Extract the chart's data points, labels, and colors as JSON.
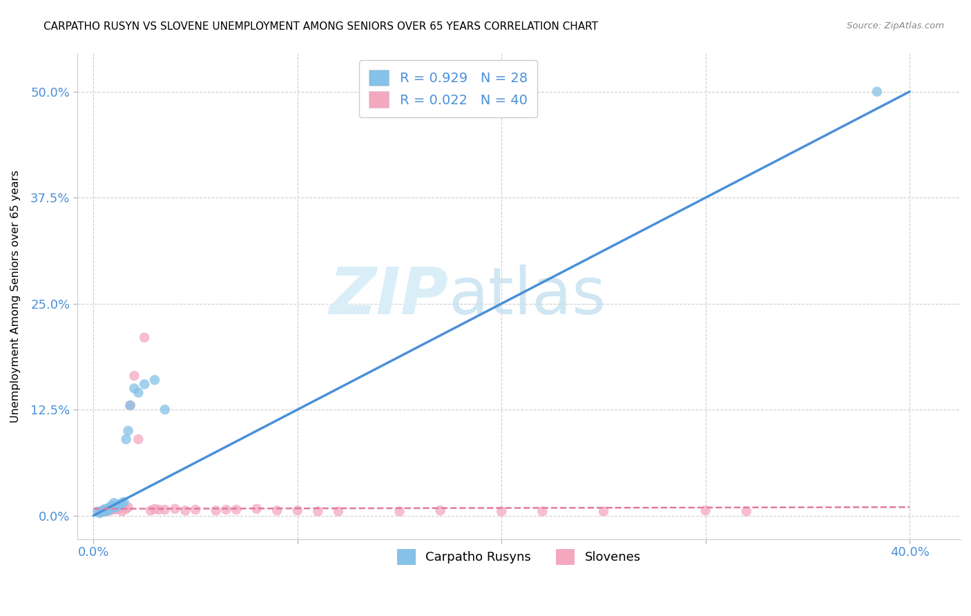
{
  "title": "CARPATHO RUSYN VS SLOVENE UNEMPLOYMENT AMONG SENIORS OVER 65 YEARS CORRELATION CHART",
  "source": "Source: ZipAtlas.com",
  "ylabel": "Unemployment Among Seniors over 65 years",
  "yticks": [
    "0.0%",
    "12.5%",
    "25.0%",
    "37.5%",
    "50.0%"
  ],
  "ytick_vals": [
    0.0,
    0.125,
    0.25,
    0.375,
    0.5
  ],
  "xtick_vals": [
    0.0,
    0.1,
    0.2,
    0.3,
    0.4
  ],
  "xlim": [
    -0.008,
    0.425
  ],
  "ylim": [
    -0.028,
    0.545
  ],
  "legend_label1": "R = 0.929   N = 28",
  "legend_label2": "R = 0.022   N = 40",
  "legend_xlabel1": "Carpatho Rusyns",
  "legend_xlabel2": "Slovenes",
  "blue_color": "#85c1e8",
  "pink_color": "#f4a8c0",
  "blue_line_color": "#4a90d9",
  "pink_line_color": "#e07aa0",
  "blue_scatter_x": [
    0.002,
    0.003,
    0.004,
    0.005,
    0.005,
    0.006,
    0.006,
    0.007,
    0.007,
    0.008,
    0.008,
    0.009,
    0.01,
    0.01,
    0.011,
    0.012,
    0.013,
    0.014,
    0.015,
    0.016,
    0.017,
    0.018,
    0.02,
    0.022,
    0.025,
    0.03,
    0.035,
    0.384
  ],
  "blue_scatter_y": [
    0.005,
    0.003,
    0.004,
    0.006,
    0.007,
    0.005,
    0.008,
    0.006,
    0.007,
    0.008,
    0.01,
    0.012,
    0.009,
    0.015,
    0.01,
    0.013,
    0.012,
    0.015,
    0.016,
    0.09,
    0.1,
    0.13,
    0.15,
    0.145,
    0.155,
    0.16,
    0.125,
    0.5
  ],
  "pink_scatter_x": [
    0.003,
    0.005,
    0.006,
    0.007,
    0.008,
    0.009,
    0.01,
    0.011,
    0.012,
    0.013,
    0.014,
    0.015,
    0.016,
    0.017,
    0.018,
    0.02,
    0.022,
    0.025,
    0.028,
    0.03,
    0.032,
    0.035,
    0.04,
    0.045,
    0.05,
    0.06,
    0.065,
    0.07,
    0.08,
    0.09,
    0.1,
    0.11,
    0.12,
    0.15,
    0.17,
    0.2,
    0.22,
    0.25,
    0.3,
    0.32
  ],
  "pink_scatter_y": [
    0.004,
    0.005,
    0.005,
    0.006,
    0.006,
    0.007,
    0.007,
    0.008,
    0.008,
    0.009,
    0.005,
    0.01,
    0.008,
    0.01,
    0.13,
    0.165,
    0.09,
    0.21,
    0.006,
    0.008,
    0.007,
    0.007,
    0.008,
    0.006,
    0.007,
    0.006,
    0.007,
    0.007,
    0.008,
    0.006,
    0.006,
    0.005,
    0.005,
    0.005,
    0.006,
    0.005,
    0.005,
    0.005,
    0.006,
    0.005
  ],
  "blue_line_x": [
    0.0,
    0.4
  ],
  "blue_line_y": [
    0.0,
    0.5
  ],
  "pink_line_x": [
    0.0,
    0.4
  ],
  "pink_line_y": [
    0.008,
    0.01
  ]
}
